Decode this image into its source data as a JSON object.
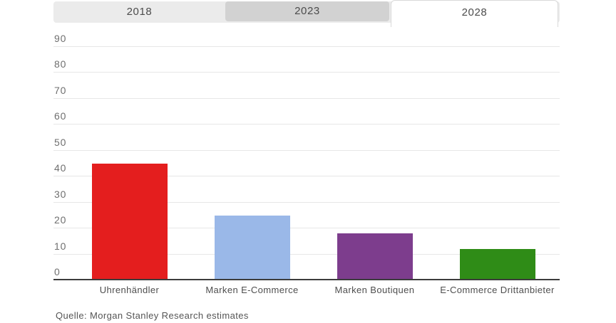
{
  "tabs": {
    "items": [
      {
        "label": "2018",
        "active": false
      },
      {
        "label": "2023",
        "active": false
      },
      {
        "label": "2028",
        "active": true
      }
    ]
  },
  "source_note": "Quelle: Morgan Stanley Research estimates",
  "chart_data": {
    "type": "bar",
    "title": "",
    "xlabel": "",
    "ylabel": "",
    "categories": [
      "Uhrenhändler",
      "Marken E-Commerce",
      "Marken Boutiquen",
      "E-Commerce Drittanbieter"
    ],
    "values": [
      45,
      25,
      18,
      12
    ],
    "bar_colors": [
      "#e41e1e",
      "#9ab8e8",
      "#7d3d8d",
      "#2f8c17"
    ],
    "selected_series": "2028",
    "ylim": [
      0,
      90
    ],
    "yticks": [
      0,
      10,
      20,
      30,
      40,
      50,
      60,
      70,
      80,
      90
    ],
    "grid": true,
    "legend": false
  },
  "theme": {
    "grid_color": "#e7e7e7",
    "axis_color": "#3c3c3c",
    "tick_label_color": "#6f6f6f",
    "category_label_color": "#4e4e4e",
    "tab_strip_bg": "#ebebeb",
    "tab_2023_bg": "#d2d2d2",
    "tab_active_bg": "#ffffff",
    "tab_border": "#d9d9d9"
  }
}
